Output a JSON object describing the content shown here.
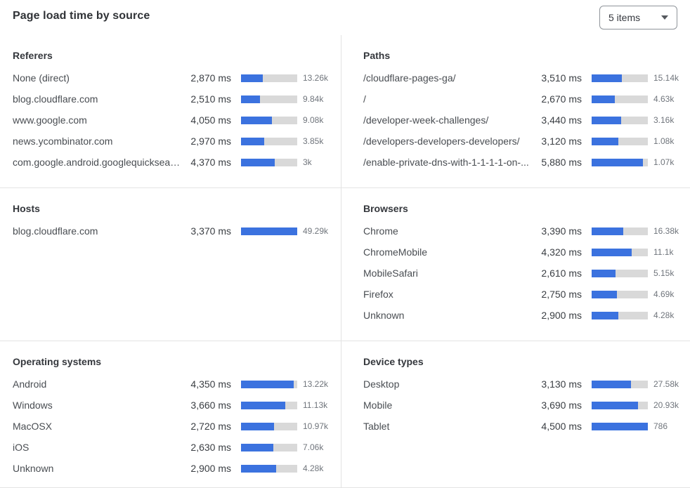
{
  "header": {
    "title": "Page load time by source",
    "dropdown": {
      "value": "5 items",
      "icon": "caret-down-icon"
    }
  },
  "colors": {
    "bar_fill": "#3b72df",
    "bar_track": "#d9d9d9",
    "divider": "#e3e3e3",
    "text_primary": "#34373c",
    "text_secondary": "#70757c"
  },
  "chart_data": [
    {
      "type": "bar",
      "title": "Referers",
      "orientation": "horizontal",
      "unit": "ms",
      "rows": [
        {
          "label": "None (direct)",
          "time_ms": 2870,
          "time_label": "2,870 ms",
          "count_label": "13.26k",
          "bar_pct": 39
        },
        {
          "label": "blog.cloudflare.com",
          "time_ms": 2510,
          "time_label": "2,510 ms",
          "count_label": "9.84k",
          "bar_pct": 34
        },
        {
          "label": "www.google.com",
          "time_ms": 4050,
          "time_label": "4,050 ms",
          "count_label": "9.08k",
          "bar_pct": 55
        },
        {
          "label": "news.ycombinator.com",
          "time_ms": 2970,
          "time_label": "2,970 ms",
          "count_label": "3.85k",
          "bar_pct": 41
        },
        {
          "label": "com.google.android.googlequicksearc...",
          "time_ms": 4370,
          "time_label": "4,370 ms",
          "count_label": "3k",
          "bar_pct": 60
        }
      ]
    },
    {
      "type": "bar",
      "title": "Paths",
      "orientation": "horizontal",
      "unit": "ms",
      "rows": [
        {
          "label": "/cloudflare-pages-ga/",
          "time_ms": 3510,
          "time_label": "3,510 ms",
          "count_label": "15.14k",
          "bar_pct": 54
        },
        {
          "label": "/",
          "time_ms": 2670,
          "time_label": "2,670 ms",
          "count_label": "4.63k",
          "bar_pct": 41
        },
        {
          "label": "/developer-week-challenges/",
          "time_ms": 3440,
          "time_label": "3,440 ms",
          "count_label": "3.16k",
          "bar_pct": 53
        },
        {
          "label": "/developers-developers-developers/",
          "time_ms": 3120,
          "time_label": "3,120 ms",
          "count_label": "1.08k",
          "bar_pct": 48
        },
        {
          "label": "/enable-private-dns-with-1-1-1-1-on-...",
          "time_ms": 5880,
          "time_label": "5,880 ms",
          "count_label": "1.07k",
          "bar_pct": 91
        }
      ]
    },
    {
      "type": "bar",
      "title": "Hosts",
      "orientation": "horizontal",
      "unit": "ms",
      "rows": [
        {
          "label": "blog.cloudflare.com",
          "time_ms": 3370,
          "time_label": "3,370 ms",
          "count_label": "49.29k",
          "bar_pct": 100
        }
      ]
    },
    {
      "type": "bar",
      "title": "Browsers",
      "orientation": "horizontal",
      "unit": "ms",
      "rows": [
        {
          "label": "Chrome",
          "time_ms": 3390,
          "time_label": "3,390 ms",
          "count_label": "16.38k",
          "bar_pct": 56
        },
        {
          "label": "ChromeMobile",
          "time_ms": 4320,
          "time_label": "4,320 ms",
          "count_label": "11.1k",
          "bar_pct": 71
        },
        {
          "label": "MobileSafari",
          "time_ms": 2610,
          "time_label": "2,610 ms",
          "count_label": "5.15k",
          "bar_pct": 43
        },
        {
          "label": "Firefox",
          "time_ms": 2750,
          "time_label": "2,750 ms",
          "count_label": "4.69k",
          "bar_pct": 45
        },
        {
          "label": "Unknown",
          "time_ms": 2900,
          "time_label": "2,900 ms",
          "count_label": "4.28k",
          "bar_pct": 48
        }
      ]
    },
    {
      "type": "bar",
      "title": "Operating systems",
      "orientation": "horizontal",
      "unit": "ms",
      "rows": [
        {
          "label": "Android",
          "time_ms": 4350,
          "time_label": "4,350 ms",
          "count_label": "13.22k",
          "bar_pct": 94
        },
        {
          "label": "Windows",
          "time_ms": 3660,
          "time_label": "3,660 ms",
          "count_label": "11.13k",
          "bar_pct": 79
        },
        {
          "label": "MacOSX",
          "time_ms": 2720,
          "time_label": "2,720 ms",
          "count_label": "10.97k",
          "bar_pct": 59
        },
        {
          "label": "iOS",
          "time_ms": 2630,
          "time_label": "2,630 ms",
          "count_label": "7.06k",
          "bar_pct": 57
        },
        {
          "label": "Unknown",
          "time_ms": 2900,
          "time_label": "2,900 ms",
          "count_label": "4.28k",
          "bar_pct": 63
        }
      ]
    },
    {
      "type": "bar",
      "title": "Device types",
      "orientation": "horizontal",
      "unit": "ms",
      "rows": [
        {
          "label": "Desktop",
          "time_ms": 3130,
          "time_label": "3,130 ms",
          "count_label": "27.58k",
          "bar_pct": 70
        },
        {
          "label": "Mobile",
          "time_ms": 3690,
          "time_label": "3,690 ms",
          "count_label": "20.93k",
          "bar_pct": 82
        },
        {
          "label": "Tablet",
          "time_ms": 4500,
          "time_label": "4,500 ms",
          "count_label": "786",
          "bar_pct": 100
        }
      ]
    }
  ]
}
